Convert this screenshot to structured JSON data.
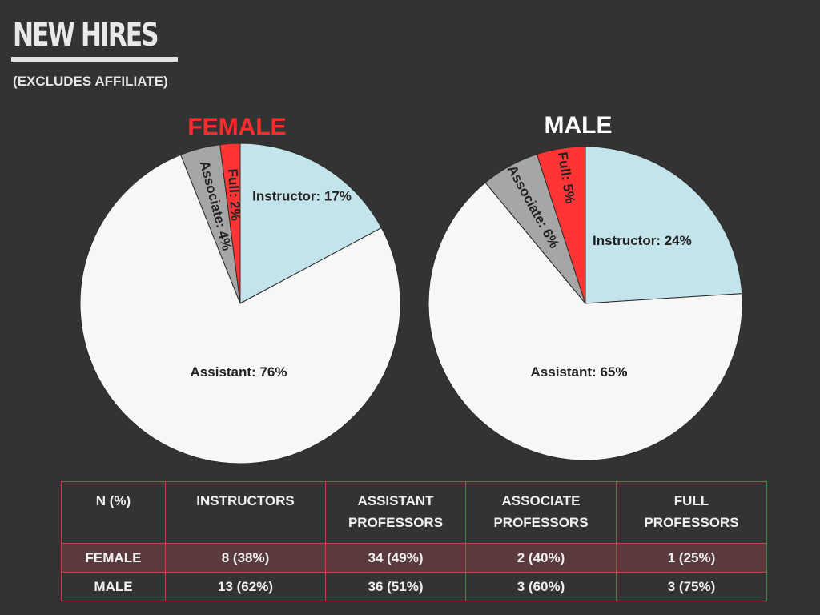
{
  "header": {
    "title": "NEW HIRES",
    "subtitle": "(EXCLUDES AFFILIATE)"
  },
  "colors": {
    "background": "#333333",
    "female_heading": "#ff2b2b",
    "male_heading": "#ffffff",
    "full": "#ff3535",
    "associate": "#a6a6a6",
    "instructor": "#c4e4ec",
    "assistant": "#f7f7f7",
    "table_border": "#b94a4a",
    "female_row": "#5a3a3c"
  },
  "chart_data": [
    {
      "type": "pie",
      "title": "FEMALE",
      "slices": [
        {
          "label": "Instructor",
          "value": 17,
          "text": "Instructor: 17%"
        },
        {
          "label": "Assistant",
          "value": 76,
          "text": "Assistant: 76%"
        },
        {
          "label": "Associate",
          "value": 4,
          "text": "Associate: 4%"
        },
        {
          "label": "Full",
          "value": 2,
          "text": "Full: 2%"
        }
      ]
    },
    {
      "type": "pie",
      "title": "MALE",
      "slices": [
        {
          "label": "Instructor",
          "value": 24,
          "text": "Instructor: 24%"
        },
        {
          "label": "Assistant",
          "value": 65,
          "text": "Assistant: 65%"
        },
        {
          "label": "Associate",
          "value": 6,
          "text": "Associate: 6%"
        },
        {
          "label": "Full",
          "value": 5,
          "text": "Full: 5%"
        }
      ]
    }
  ],
  "table": {
    "headers": [
      "N (%)",
      "INSTRUCTORS",
      "ASSISTANT PROFESSORS",
      "ASSOCIATE PROFESSORS",
      "FULL PROFESSORS"
    ],
    "rows": [
      {
        "label": "FEMALE",
        "cells": [
          "8 (38%)",
          "34 (49%)",
          "2 (40%)",
          "1 (25%)"
        ]
      },
      {
        "label": "MALE",
        "cells": [
          "13 (62%)",
          "36 (51%)",
          "3 (60%)",
          "3 (75%)"
        ]
      }
    ]
  }
}
